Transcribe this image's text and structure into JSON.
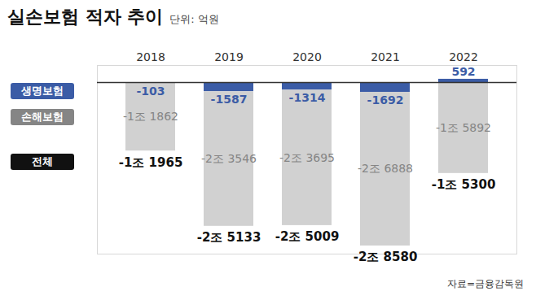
{
  "chart_data": {
    "type": "bar",
    "title": "실손보험 적자 추이",
    "subtitle": "단위: 억원",
    "source": "자료=금융감독원",
    "categories": [
      "2018",
      "2019",
      "2020",
      "2021",
      "2022"
    ],
    "series": [
      {
        "name": "생명보험",
        "color": "#3b5ca6",
        "values": [
          -103,
          -1587,
          -1314,
          -1692,
          592
        ],
        "value_labels": [
          "-103",
          "-1587",
          "-1314",
          "-1692",
          "592"
        ]
      },
      {
        "name": "손해보험",
        "color": "#858585",
        "values": [
          -11862,
          -23546,
          -23695,
          -26888,
          -15892
        ],
        "value_labels": [
          "-1조 1862",
          "-2조 3546",
          "-2조 3695",
          "-2조 6888",
          "-1조 5892"
        ]
      },
      {
        "name": "전체",
        "type": "text",
        "color": "#111111",
        "values": [
          -11965,
          -25133,
          -25009,
          -28580,
          -15300
        ],
        "value_labels": [
          "-1조 1965",
          "-2조 5133",
          "-2조 5009",
          "-2조 8580",
          "-1조 5300"
        ]
      }
    ],
    "stacked": true,
    "data_labels": true,
    "legend": "left",
    "tick_labels": "x",
    "grid": false,
    "ylim": [
      -30000,
      3000
    ],
    "yticks": [
      0
    ]
  }
}
